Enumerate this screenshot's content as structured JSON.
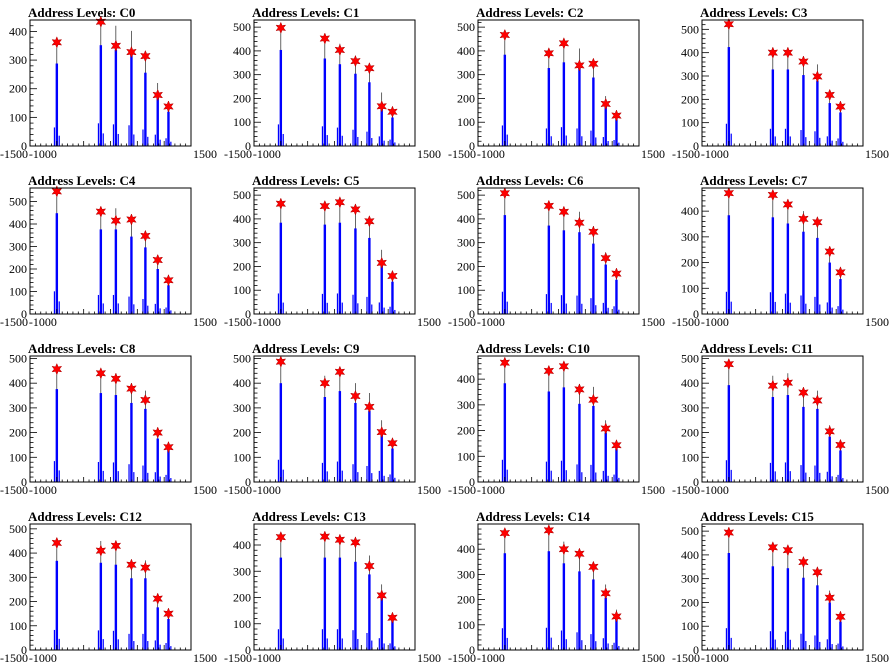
{
  "colors": {
    "histogram": "#0000ff",
    "marker": "#ff0000",
    "axis": "#000000"
  },
  "chart_data": [
    {
      "type": "bar",
      "title": "Address Levels: C0",
      "xlim": [
        -1500,
        1500
      ],
      "ylim": [
        0,
        440
      ],
      "xticks": [
        -1500,
        -1000,
        -500,
        0,
        500,
        1000,
        1500
      ],
      "xtick_labels": [
        "-1500",
        "-1000",
        "",
        "",
        "",
        "",
        "1500"
      ],
      "yticks": [
        0,
        100,
        200,
        300,
        400
      ],
      "xlabel": "",
      "ylabel": "",
      "peaks": [
        {
          "x": -1000,
          "y": 360,
          "marker": 362
        },
        {
          "x": -180,
          "y": 440,
          "marker": 434
        },
        {
          "x": 100,
          "y": 420,
          "marker": 350
        },
        {
          "x": 390,
          "y": 402,
          "marker": 328
        },
        {
          "x": 650,
          "y": 320,
          "marker": 314
        },
        {
          "x": 880,
          "y": 220,
          "marker": 178
        },
        {
          "x": 1080,
          "y": 150,
          "marker": 138
        }
      ]
    },
    {
      "type": "bar",
      "title": "Address Levels: C1",
      "xlim": [
        -1500,
        1500
      ],
      "ylim": [
        0,
        530
      ],
      "xticks": [
        -1500,
        -1000,
        -500,
        0,
        500,
        1000,
        1500
      ],
      "xtick_labels": [
        "-1500",
        "-1000",
        "",
        "",
        "",
        "",
        "1500"
      ],
      "yticks": [
        0,
        100,
        200,
        300,
        400,
        500
      ],
      "xlabel": "",
      "ylabel": "",
      "peaks": [
        {
          "x": -1000,
          "y": 505,
          "marker": 497
        },
        {
          "x": -180,
          "y": 460,
          "marker": 452
        },
        {
          "x": 100,
          "y": 430,
          "marker": 404
        },
        {
          "x": 390,
          "y": 380,
          "marker": 357
        },
        {
          "x": 650,
          "y": 335,
          "marker": 327
        },
        {
          "x": 880,
          "y": 225,
          "marker": 167
        },
        {
          "x": 1080,
          "y": 150,
          "marker": 144
        }
      ]
    },
    {
      "type": "bar",
      "title": "Address Levels: C2",
      "xlim": [
        -1500,
        1500
      ],
      "ylim": [
        0,
        530
      ],
      "xticks": [
        -1500,
        -1000,
        -500,
        0,
        500,
        1000,
        1500
      ],
      "xtick_labels": [
        "-1500",
        "-1000",
        "",
        "",
        "",
        "",
        "1500"
      ],
      "yticks": [
        0,
        100,
        200,
        300,
        400,
        500
      ],
      "xlabel": "",
      "ylabel": "",
      "peaks": [
        {
          "x": -1000,
          "y": 480,
          "marker": 467
        },
        {
          "x": -180,
          "y": 410,
          "marker": 390
        },
        {
          "x": 100,
          "y": 440,
          "marker": 432
        },
        {
          "x": 390,
          "y": 410,
          "marker": 339
        },
        {
          "x": 650,
          "y": 360,
          "marker": 346
        },
        {
          "x": 880,
          "y": 210,
          "marker": 177
        },
        {
          "x": 1080,
          "y": 140,
          "marker": 128
        }
      ]
    },
    {
      "type": "bar",
      "title": "Address Levels: C3",
      "xlim": [
        -1500,
        1500
      ],
      "ylim": [
        0,
        540
      ],
      "xticks": [
        -1500,
        -1000,
        -500,
        0,
        500,
        1000,
        1500
      ],
      "xtick_labels": [
        "-1500",
        "-1000",
        "",
        "",
        "",
        "",
        "1500"
      ],
      "yticks": [
        0,
        100,
        200,
        300,
        400,
        500
      ],
      "xlabel": "",
      "ylabel": "",
      "peaks": [
        {
          "x": -1000,
          "y": 530,
          "marker": 522
        },
        {
          "x": -180,
          "y": 410,
          "marker": 400
        },
        {
          "x": 100,
          "y": 410,
          "marker": 400
        },
        {
          "x": 390,
          "y": 380,
          "marker": 362
        },
        {
          "x": 650,
          "y": 350,
          "marker": 298
        },
        {
          "x": 880,
          "y": 230,
          "marker": 219
        },
        {
          "x": 1080,
          "y": 180,
          "marker": 169
        }
      ]
    },
    {
      "type": "bar",
      "title": "Address Levels: C4",
      "xlim": [
        -1500,
        1500
      ],
      "ylim": [
        0,
        560
      ],
      "xticks": [
        -1500,
        -1000,
        -500,
        0,
        500,
        1000,
        1500
      ],
      "xtick_labels": [
        "-1500",
        "-1000",
        "",
        "",
        "",
        "",
        "1500"
      ],
      "yticks": [
        0,
        100,
        200,
        300,
        400,
        500
      ],
      "xlabel": "",
      "ylabel": "",
      "peaks": [
        {
          "x": -1000,
          "y": 560,
          "marker": 545
        },
        {
          "x": -180,
          "y": 470,
          "marker": 455
        },
        {
          "x": 100,
          "y": 470,
          "marker": 415
        },
        {
          "x": 390,
          "y": 430,
          "marker": 420
        },
        {
          "x": 650,
          "y": 370,
          "marker": 347
        },
        {
          "x": 880,
          "y": 250,
          "marker": 240
        },
        {
          "x": 1080,
          "y": 160,
          "marker": 150
        }
      ]
    },
    {
      "type": "bar",
      "title": "Address Levels: C5",
      "xlim": [
        -1500,
        1500
      ],
      "ylim": [
        0,
        530
      ],
      "xticks": [
        -1500,
        -1000,
        -500,
        0,
        500,
        1000,
        1500
      ],
      "xtick_labels": [
        "-1500",
        "-1000",
        "",
        "",
        "",
        "",
        "1500"
      ],
      "yticks": [
        0,
        100,
        200,
        300,
        400,
        500
      ],
      "xlabel": "",
      "ylabel": "",
      "peaks": [
        {
          "x": -1000,
          "y": 480,
          "marker": 464
        },
        {
          "x": -180,
          "y": 470,
          "marker": 454
        },
        {
          "x": 100,
          "y": 480,
          "marker": 470
        },
        {
          "x": 390,
          "y": 450,
          "marker": 440
        },
        {
          "x": 650,
          "y": 400,
          "marker": 390
        },
        {
          "x": 880,
          "y": 270,
          "marker": 215
        },
        {
          "x": 1080,
          "y": 170,
          "marker": 160
        }
      ]
    },
    {
      "type": "bar",
      "title": "Address Levels: C6",
      "xlim": [
        -1500,
        1500
      ],
      "ylim": [
        0,
        530
      ],
      "xticks": [
        -1500,
        -1000,
        -500,
        0,
        500,
        1000,
        1500
      ],
      "xtick_labels": [
        "-1500",
        "-1000",
        "",
        "",
        "",
        "",
        "1500"
      ],
      "yticks": [
        0,
        100,
        200,
        300,
        400,
        500
      ],
      "xlabel": "",
      "ylabel": "",
      "peaks": [
        {
          "x": -1000,
          "y": 520,
          "marker": 508
        },
        {
          "x": -180,
          "y": 465,
          "marker": 455
        },
        {
          "x": 100,
          "y": 440,
          "marker": 430
        },
        {
          "x": 390,
          "y": 430,
          "marker": 384
        },
        {
          "x": 650,
          "y": 370,
          "marker": 346
        },
        {
          "x": 880,
          "y": 260,
          "marker": 235
        },
        {
          "x": 1080,
          "y": 180,
          "marker": 170
        }
      ]
    },
    {
      "type": "bar",
      "title": "Address Levels: C7",
      "xlim": [
        -1500,
        1500
      ],
      "ylim": [
        0,
        490
      ],
      "xticks": [
        -1500,
        -1000,
        -500,
        0,
        500,
        1000,
        1500
      ],
      "xtick_labels": [
        "-1500",
        "-1000",
        "",
        "",
        "",
        "",
        "1500"
      ],
      "yticks": [
        0,
        100,
        200,
        300,
        400
      ],
      "xlabel": "",
      "ylabel": "",
      "peaks": [
        {
          "x": -1000,
          "y": 480,
          "marker": 470
        },
        {
          "x": -180,
          "y": 470,
          "marker": 463
        },
        {
          "x": 100,
          "y": 440,
          "marker": 426
        },
        {
          "x": 390,
          "y": 400,
          "marker": 370
        },
        {
          "x": 650,
          "y": 370,
          "marker": 357
        },
        {
          "x": 880,
          "y": 250,
          "marker": 243
        },
        {
          "x": 1080,
          "y": 170,
          "marker": 162
        }
      ]
    },
    {
      "type": "bar",
      "title": "Address Levels: C8",
      "xlim": [
        -1500,
        1500
      ],
      "ylim": [
        0,
        510
      ],
      "xticks": [
        -1500,
        -1000,
        -500,
        0,
        500,
        1000,
        1500
      ],
      "xtick_labels": [
        "-1500",
        "-1000",
        "",
        "",
        "",
        "",
        "1500"
      ],
      "yticks": [
        0,
        100,
        200,
        300,
        400,
        500
      ],
      "xlabel": "",
      "ylabel": "",
      "peaks": [
        {
          "x": -1000,
          "y": 470,
          "marker": 457
        },
        {
          "x": -180,
          "y": 450,
          "marker": 440
        },
        {
          "x": 100,
          "y": 440,
          "marker": 418
        },
        {
          "x": 390,
          "y": 400,
          "marker": 378
        },
        {
          "x": 650,
          "y": 370,
          "marker": 332
        },
        {
          "x": 880,
          "y": 220,
          "marker": 200
        },
        {
          "x": 1080,
          "y": 160,
          "marker": 141
        }
      ]
    },
    {
      "type": "bar",
      "title": "Address Levels: C9",
      "xlim": [
        -1500,
        1500
      ],
      "ylim": [
        0,
        510
      ],
      "xticks": [
        -1500,
        -1000,
        -500,
        0,
        500,
        1000,
        1500
      ],
      "xtick_labels": [
        "-1500",
        "-1000",
        "",
        "",
        "",
        "",
        "1500"
      ],
      "yticks": [
        0,
        100,
        200,
        300,
        400,
        500
      ],
      "xlabel": "",
      "ylabel": "",
      "peaks": [
        {
          "x": -1000,
          "y": 500,
          "marker": 487
        },
        {
          "x": -180,
          "y": 430,
          "marker": 400
        },
        {
          "x": 100,
          "y": 460,
          "marker": 446
        },
        {
          "x": 390,
          "y": 400,
          "marker": 348
        },
        {
          "x": 650,
          "y": 360,
          "marker": 304
        },
        {
          "x": 880,
          "y": 250,
          "marker": 202
        },
        {
          "x": 1080,
          "y": 170,
          "marker": 157
        }
      ]
    },
    {
      "type": "bar",
      "title": "Address Levels: C10",
      "xlim": [
        -1500,
        1500
      ],
      "ylim": [
        0,
        490
      ],
      "xticks": [
        -1500,
        -1000,
        -500,
        0,
        500,
        1000,
        1500
      ],
      "xtick_labels": [
        "-1500",
        "-1000",
        "",
        "",
        "",
        "",
        "1500"
      ],
      "yticks": [
        0,
        100,
        200,
        300,
        400
      ],
      "xlabel": "",
      "ylabel": "",
      "peaks": [
        {
          "x": -1000,
          "y": 480,
          "marker": 464
        },
        {
          "x": -180,
          "y": 440,
          "marker": 432
        },
        {
          "x": 100,
          "y": 460,
          "marker": 450
        },
        {
          "x": 390,
          "y": 380,
          "marker": 360
        },
        {
          "x": 650,
          "y": 370,
          "marker": 320
        },
        {
          "x": 880,
          "y": 240,
          "marker": 208
        },
        {
          "x": 1080,
          "y": 160,
          "marker": 143
        }
      ]
    },
    {
      "type": "bar",
      "title": "Address Levels: C11",
      "xlim": [
        -1500,
        1500
      ],
      "ylim": [
        0,
        510
      ],
      "xticks": [
        -1500,
        -1000,
        -500,
        0,
        500,
        1000,
        1500
      ],
      "xtick_labels": [
        "-1500",
        "-1000",
        "",
        "",
        "",
        "",
        "1500"
      ],
      "yticks": [
        0,
        100,
        200,
        300,
        400,
        500
      ],
      "xlabel": "",
      "ylabel": "",
      "peaks": [
        {
          "x": -1000,
          "y": 490,
          "marker": 477
        },
        {
          "x": -180,
          "y": 430,
          "marker": 390
        },
        {
          "x": 100,
          "y": 440,
          "marker": 402
        },
        {
          "x": 390,
          "y": 380,
          "marker": 362
        },
        {
          "x": 650,
          "y": 370,
          "marker": 330
        },
        {
          "x": 880,
          "y": 230,
          "marker": 205
        },
        {
          "x": 1080,
          "y": 160,
          "marker": 150
        }
      ]
    },
    {
      "type": "bar",
      "title": "Address Levels: C12",
      "xlim": [
        -1500,
        1500
      ],
      "ylim": [
        0,
        520
      ],
      "xticks": [
        -1500,
        -1000,
        -500,
        0,
        500,
        1000,
        1500
      ],
      "xtick_labels": [
        "-1500",
        "-1000",
        "",
        "",
        "",
        "",
        "1500"
      ],
      "yticks": [
        0,
        100,
        200,
        300,
        400,
        500
      ],
      "xlabel": "",
      "ylabel": "",
      "peaks": [
        {
          "x": -1000,
          "y": 460,
          "marker": 442
        },
        {
          "x": -180,
          "y": 450,
          "marker": 410
        },
        {
          "x": 100,
          "y": 440,
          "marker": 430
        },
        {
          "x": 390,
          "y": 370,
          "marker": 352
        },
        {
          "x": 650,
          "y": 370,
          "marker": 340
        },
        {
          "x": 880,
          "y": 220,
          "marker": 212
        },
        {
          "x": 1080,
          "y": 160,
          "marker": 150
        }
      ]
    },
    {
      "type": "bar",
      "title": "Address Levels: C13",
      "xlim": [
        -1500,
        1500
      ],
      "ylim": [
        0,
        480
      ],
      "xticks": [
        -1500,
        -1000,
        -500,
        0,
        500,
        1000,
        1500
      ],
      "xtick_labels": [
        "-1500",
        "-1000",
        "",
        "",
        "",
        "",
        "1500"
      ],
      "yticks": [
        0,
        100,
        200,
        300,
        400
      ],
      "xlabel": "",
      "ylabel": "",
      "peaks": [
        {
          "x": -1000,
          "y": 440,
          "marker": 430
        },
        {
          "x": -180,
          "y": 440,
          "marker": 432
        },
        {
          "x": 100,
          "y": 440,
          "marker": 420
        },
        {
          "x": 390,
          "y": 420,
          "marker": 410
        },
        {
          "x": 650,
          "y": 360,
          "marker": 320
        },
        {
          "x": 880,
          "y": 250,
          "marker": 208
        },
        {
          "x": 1080,
          "y": 140,
          "marker": 123
        }
      ]
    },
    {
      "type": "bar",
      "title": "Address Levels: C14",
      "xlim": [
        -1500,
        1500
      ],
      "ylim": [
        0,
        500
      ],
      "xticks": [
        -1500,
        -1000,
        -500,
        0,
        500,
        1000,
        1500
      ],
      "xtick_labels": [
        "-1500",
        "-1000",
        "",
        "",
        "",
        "",
        "1500"
      ],
      "yticks": [
        0,
        100,
        200,
        300,
        400
      ],
      "xlabel": "",
      "ylabel": "",
      "peaks": [
        {
          "x": -1000,
          "y": 480,
          "marker": 464
        },
        {
          "x": -180,
          "y": 490,
          "marker": 475
        },
        {
          "x": 100,
          "y": 430,
          "marker": 400
        },
        {
          "x": 390,
          "y": 390,
          "marker": 382
        },
        {
          "x": 650,
          "y": 350,
          "marker": 330
        },
        {
          "x": 880,
          "y": 260,
          "marker": 225
        },
        {
          "x": 1080,
          "y": 160,
          "marker": 133
        }
      ]
    },
    {
      "type": "bar",
      "title": "Address Levels: C15",
      "xlim": [
        -1500,
        1500
      ],
      "ylim": [
        0,
        530
      ],
      "xticks": [
        -1500,
        -1000,
        -500,
        0,
        500,
        1000,
        1500
      ],
      "xtick_labels": [
        "-1500",
        "-1000",
        "",
        "",
        "",
        "",
        "1500"
      ],
      "yticks": [
        0,
        100,
        200,
        300,
        400,
        500
      ],
      "xlabel": "",
      "ylabel": "",
      "peaks": [
        {
          "x": -1000,
          "y": 510,
          "marker": 494
        },
        {
          "x": -180,
          "y": 440,
          "marker": 432
        },
        {
          "x": 100,
          "y": 430,
          "marker": 420
        },
        {
          "x": 390,
          "y": 380,
          "marker": 370
        },
        {
          "x": 650,
          "y": 340,
          "marker": 327
        },
        {
          "x": 880,
          "y": 250,
          "marker": 220
        },
        {
          "x": 1080,
          "y": 150,
          "marker": 140
        }
      ]
    }
  ]
}
